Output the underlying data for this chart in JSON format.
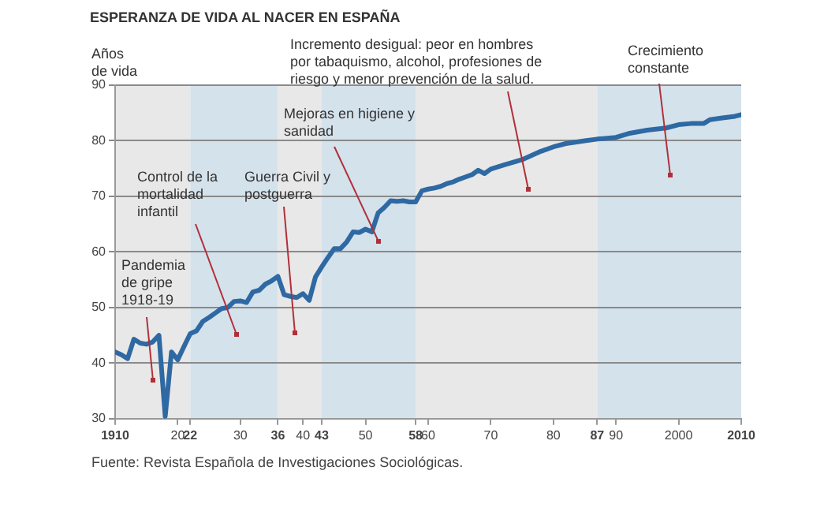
{
  "chart_data": {
    "type": "line",
    "title": "ESPERANZA DE VIDA AL NACER EN ESPAÑA",
    "ylabel": "Años de vida",
    "x": [
      1910,
      1911,
      1912,
      1913,
      1914,
      1915,
      1916,
      1917,
      1918,
      1919,
      1920,
      1921,
      1922,
      1923,
      1924,
      1925,
      1926,
      1927,
      1928,
      1929,
      1930,
      1931,
      1932,
      1933,
      1934,
      1935,
      1936,
      1937,
      1938,
      1939,
      1940,
      1941,
      1942,
      1943,
      1944,
      1945,
      1946,
      1947,
      1948,
      1949,
      1950,
      1951,
      1952,
      1953,
      1954,
      1955,
      1956,
      1957,
      1958,
      1959,
      1960,
      1961,
      1962,
      1963,
      1964,
      1965,
      1966,
      1967,
      1968,
      1969,
      1970,
      1972,
      1975,
      1978,
      1980,
      1982,
      1985,
      1987,
      1990,
      1992,
      1995,
      1998,
      2000,
      2002,
      2004,
      2005,
      2007,
      2009,
      2010
    ],
    "series": [
      {
        "color": "#2f69a3",
        "values": [
          42.0,
          41.5,
          40.8,
          44.3,
          43.6,
          43.4,
          43.8,
          45.0,
          30.4,
          42.0,
          40.6,
          43.0,
          45.3,
          45.8,
          47.5,
          48.2,
          49.0,
          49.8,
          50.0,
          51.1,
          51.2,
          50.9,
          52.8,
          53.1,
          54.2,
          54.8,
          55.6,
          52.3,
          52.0,
          51.8,
          52.5,
          51.3,
          55.5,
          57.3,
          59.0,
          60.6,
          60.6,
          61.8,
          63.6,
          63.5,
          64.1,
          63.6,
          67.0,
          68.0,
          69.2,
          69.1,
          69.2,
          69.0,
          69.0,
          71.0,
          71.3,
          71.5,
          71.8,
          72.3,
          72.6,
          73.1,
          73.5,
          73.9,
          74.7,
          74.1,
          74.9,
          75.6,
          76.6,
          78.1,
          78.9,
          79.5,
          80.0,
          80.3,
          80.6,
          81.3,
          81.9,
          82.3,
          82.9,
          83.1,
          83.1,
          83.8,
          84.1,
          84.4,
          84.7
        ]
      }
    ],
    "xlim": [
      1910,
      2010
    ],
    "xticks": [
      1910,
      {
        "value": 1920,
        "label": "20"
      },
      {
        "value": 1922,
        "label": "22"
      },
      {
        "value": 1930,
        "label": "30"
      },
      {
        "value": 1936,
        "label": "36"
      },
      {
        "value": 1940,
        "label": "40"
      },
      {
        "value": 1943,
        "label": "43"
      },
      {
        "value": 1950,
        "label": "50"
      },
      {
        "value": 1958,
        "label": "58"
      },
      {
        "value": 1960,
        "label": "60"
      },
      {
        "value": 1970,
        "label": "70"
      },
      {
        "value": 1980,
        "label": "80"
      },
      {
        "value": 1987,
        "label": "87"
      },
      {
        "value": 1990,
        "label": "90"
      },
      {
        "value": 2000,
        "label": "2000"
      },
      2010
    ],
    "ylim": [
      30,
      90
    ],
    "yticks": [
      30,
      40,
      50,
      60,
      70,
      80,
      90
    ],
    "grid": "y",
    "marker": "none",
    "line_style": "solid",
    "bands": [
      {
        "axis": "x",
        "from": 1910,
        "to": 1922,
        "label": "Pandemia de gripe 1918-19",
        "color": "#e8e8e8"
      },
      {
        "axis": "x",
        "from": 1922,
        "to": 1936,
        "label": "Control de la mortalidad infantil",
        "color": "#d4e2ec"
      },
      {
        "axis": "x",
        "from": 1936,
        "to": 1943,
        "label": "Guerra Civil y postguerra",
        "color": "#e8e8e8"
      },
      {
        "axis": "x",
        "from": 1943,
        "to": 1958,
        "label": "Mejoras en higiene y sanidad",
        "color": "#d4e2ec"
      },
      {
        "axis": "x",
        "from": 1958,
        "to": 1987,
        "label": "Incremento desigual: peor en hombres por tabaquismo, alcohol, profesiones de riesgo y menor prevención de la salud.",
        "color": "#e8e8e8"
      },
      {
        "axis": "x",
        "from": 1987,
        "to": 2010,
        "label": "Crecimiento constante",
        "color": "#d4e2ec"
      }
    ],
    "annotations": [
      "Fuente: Revista Española de Investigaciones Sociológicas."
    ]
  }
}
